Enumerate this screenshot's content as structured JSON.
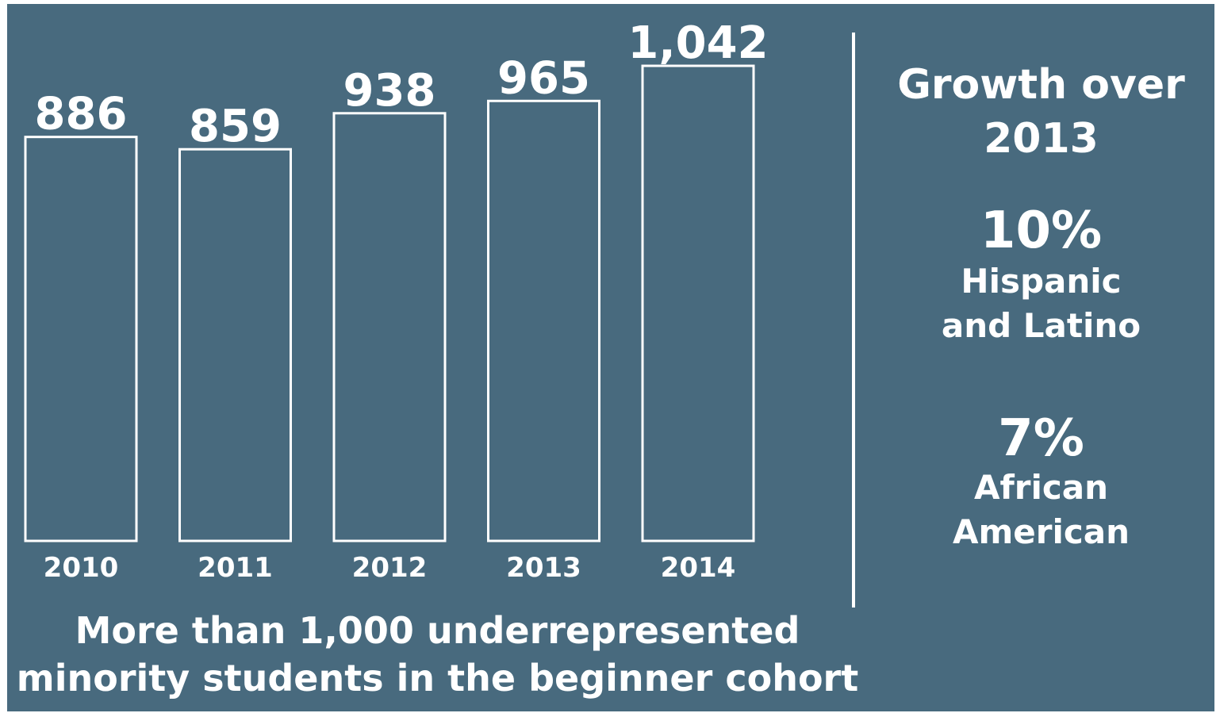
{
  "chart_data": {
    "type": "bar",
    "categories": [
      "2010",
      "2011",
      "2012",
      "2013",
      "2014"
    ],
    "values": [
      886,
      859,
      938,
      965,
      1042
    ],
    "value_labels": [
      "886",
      "859",
      "938",
      "965",
      "1,042"
    ],
    "ylim": [
      0,
      1042
    ],
    "grid": false,
    "caption_lines": [
      "More than 1,000 underrepresented",
      "minority students in the beginner cohort"
    ]
  },
  "side_panel": {
    "title_lines": [
      "Growth over",
      "2013"
    ],
    "stats": [
      {
        "percent": "10%",
        "label_lines": [
          "Hispanic",
          "and Latino"
        ]
      },
      {
        "percent": "7%",
        "label_lines": [
          "African",
          "American"
        ]
      }
    ]
  },
  "colors": {
    "background": "#486a7e",
    "foreground": "#ffffff"
  }
}
